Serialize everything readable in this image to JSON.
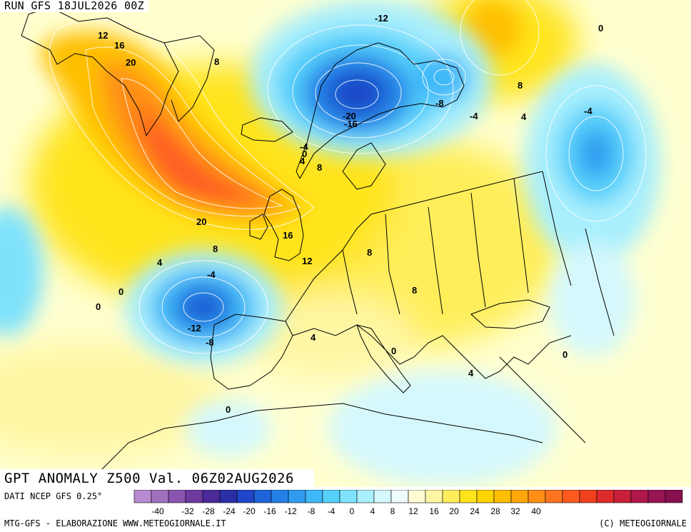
{
  "header": {
    "run": "RUN GFS 18JUL2026 00Z"
  },
  "footer": {
    "title": "GPT ANOMALY Z500 Val. 06Z02AUG2026",
    "source": "DATI NCEP GFS 0.25°",
    "credit_left": "MTG-GFS - ELABORAZIONE WWW.METEOGIORNALE.IT",
    "credit_right": "(C) METEOGIORNALE"
  },
  "legend": {
    "colors": [
      "#b88ad0",
      "#a070c0",
      "#8a55b0",
      "#6e3aa0",
      "#4a2a98",
      "#2a2fa8",
      "#1f46c8",
      "#1f63d8",
      "#2480e6",
      "#2f9cf0",
      "#3db8f8",
      "#55d0fb",
      "#7fe2fc",
      "#a9effd",
      "#d4f8fd",
      "#eefcfd",
      "#fffcd4",
      "#fff6a3",
      "#ffee5a",
      "#ffe41c",
      "#ffd400",
      "#ffbf00",
      "#ffa70a",
      "#ff8e15",
      "#ff7420",
      "#ff5a20",
      "#f0401e",
      "#dd2a2a",
      "#c8203a",
      "#b0184a",
      "#981452",
      "#86104e"
    ],
    "tick_labels": [
      "-40",
      "-32",
      "-28",
      "-24",
      "-20",
      "-16",
      "-12",
      "-8",
      "-4",
      "0",
      "4",
      "8",
      "12",
      "16",
      "20",
      "24",
      "28",
      "32",
      "40"
    ]
  },
  "contour_labels": [
    "12",
    "16",
    "20",
    "8",
    "-12",
    "0",
    "8",
    "4",
    "-20",
    "-16",
    "-8",
    "-4",
    "-4",
    "0",
    "4",
    "8",
    "20",
    "16",
    "8",
    "12",
    "8",
    "4",
    "-4",
    "0",
    "0",
    "-12",
    "-8",
    "4",
    "8",
    "0",
    "4",
    "0",
    "0",
    "-4"
  ],
  "theme": {
    "cold_core": "#1f46c8",
    "warm_core": "#f0401e",
    "background": "#ffffd0",
    "coastline": "#000000",
    "isoline": "#ffffff"
  }
}
